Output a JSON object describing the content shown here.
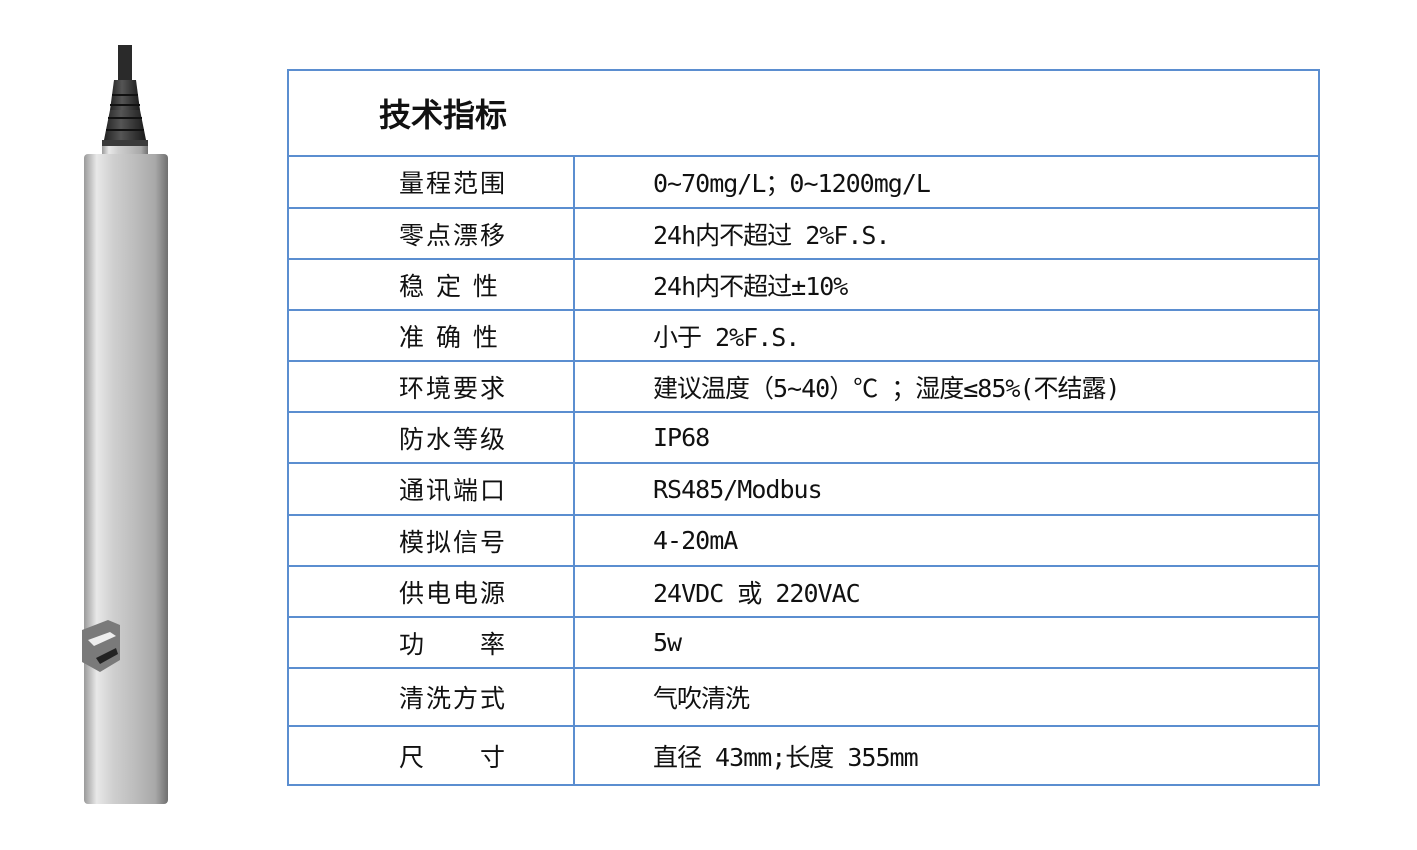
{
  "title": "技术指标",
  "rows": [
    {
      "label": "量程范围",
      "value": "0~70mg/L；0~1200mg/L"
    },
    {
      "label": "零点漂移",
      "value": "24h内不超过 2%F.S."
    },
    {
      "label": "稳 定 性",
      "value": "24h内不超过±10%"
    },
    {
      "label": "准 确 性",
      "value": "小于 2%F.S."
    },
    {
      "label": "环境要求",
      "value": "建议温度（5~40）℃ ；湿度≤85%(不结露)"
    },
    {
      "label": "防水等级",
      "value": "IP68"
    },
    {
      "label": "通讯端口",
      "value": "RS485/Modbus"
    },
    {
      "label": "模拟信号",
      "value": "4-20mA"
    },
    {
      "label": "供电电源",
      "value": "24VDC 或 220VAC"
    },
    {
      "label": "功　　率",
      "value": "5w"
    },
    {
      "label": "清洗方式",
      "value": "气吹清洗"
    },
    {
      "label": "尺　　寸",
      "value": "直径 43mm;长度 355mm"
    }
  ],
  "colors": {
    "border": "#5b8ed0"
  }
}
